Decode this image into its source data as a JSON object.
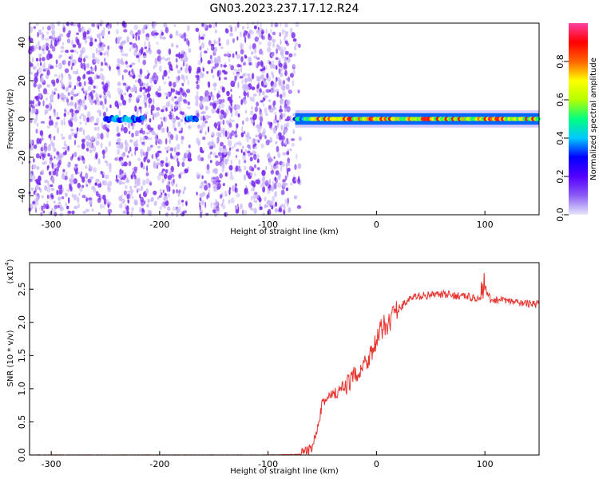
{
  "figure_title": "GN03.2023.237.17.12.R24",
  "colors": {
    "snr_line": "#e8332e",
    "spectrogram_noise": "#7a2cf0",
    "colorbar_stops": [
      "#e6e6fa",
      "#8a5cf5",
      "#5500ff",
      "#0000ff",
      "#00c8ff",
      "#00ff80",
      "#b4ff00",
      "#ffff00",
      "#ff6400",
      "#ff0000",
      "#ff40a0"
    ]
  },
  "chart_data": [
    {
      "type": "heatmap",
      "xlabel": "Height of straight line (km)",
      "ylabel": "Frequency (Hz)",
      "xlim": [
        -320,
        150
      ],
      "ylim": [
        -50,
        50
      ],
      "xticks": [
        "-300",
        "-200",
        "-100",
        "0",
        "100"
      ],
      "yticks": [
        "40",
        "20",
        "0",
        "-20",
        "-40"
      ],
      "colorbar": {
        "label": "Normalized spectral amplitude",
        "range": [
          0.0,
          1.0
        ],
        "ticks": [
          "0.0",
          "0.2",
          "0.4",
          "0.6",
          "0.8"
        ]
      },
      "signal_band": {
        "center_hz": 0,
        "halfwidth_hz": 3,
        "start_km": -75,
        "end_km": 150,
        "amplitude": 0.9
      },
      "noise_region": {
        "start_km": -320,
        "end_km": -70,
        "amplitude": 0.08
      },
      "weak_signal_segments": [
        {
          "start_km": -250,
          "end_km": -215,
          "amplitude": 0.35
        },
        {
          "start_km": -175,
          "end_km": -165,
          "amplitude": 0.35
        }
      ],
      "data_gaps_km": [
        [
          -245,
          -240
        ],
        [
          -172,
          -166
        ]
      ]
    },
    {
      "type": "line",
      "xlabel": "Height of straight line (km)",
      "ylabel": "SNR (10 * v/v)",
      "y_scale_note": "(x10",
      "y_scale_exponent": "4",
      "xlim": [
        -320,
        150
      ],
      "ylim": [
        0,
        2.9
      ],
      "xticks": [
        "-300",
        "-200",
        "-100",
        "0",
        "100"
      ],
      "yticks": [
        "0.0",
        "0.5",
        "1.0",
        "1.5",
        "2.0",
        "2.5"
      ],
      "series": [
        {
          "x": [
            -320,
            -100,
            -70,
            -60,
            -55,
            -50,
            -45,
            -40,
            -35,
            -30,
            -25,
            -20,
            -15,
            -10,
            -5,
            0,
            5,
            10,
            15,
            20,
            30,
            40,
            60,
            80,
            95,
            100,
            105,
            120,
            140,
            150
          ],
          "y": [
            0.0,
            0.0,
            0.01,
            0.1,
            0.4,
            0.8,
            0.85,
            0.9,
            0.95,
            1.0,
            1.1,
            1.2,
            1.3,
            1.4,
            1.55,
            1.7,
            1.9,
            2.0,
            2.1,
            2.2,
            2.35,
            2.4,
            2.42,
            2.4,
            2.35,
            2.5,
            2.35,
            2.32,
            2.28,
            2.27
          ]
        }
      ]
    }
  ]
}
